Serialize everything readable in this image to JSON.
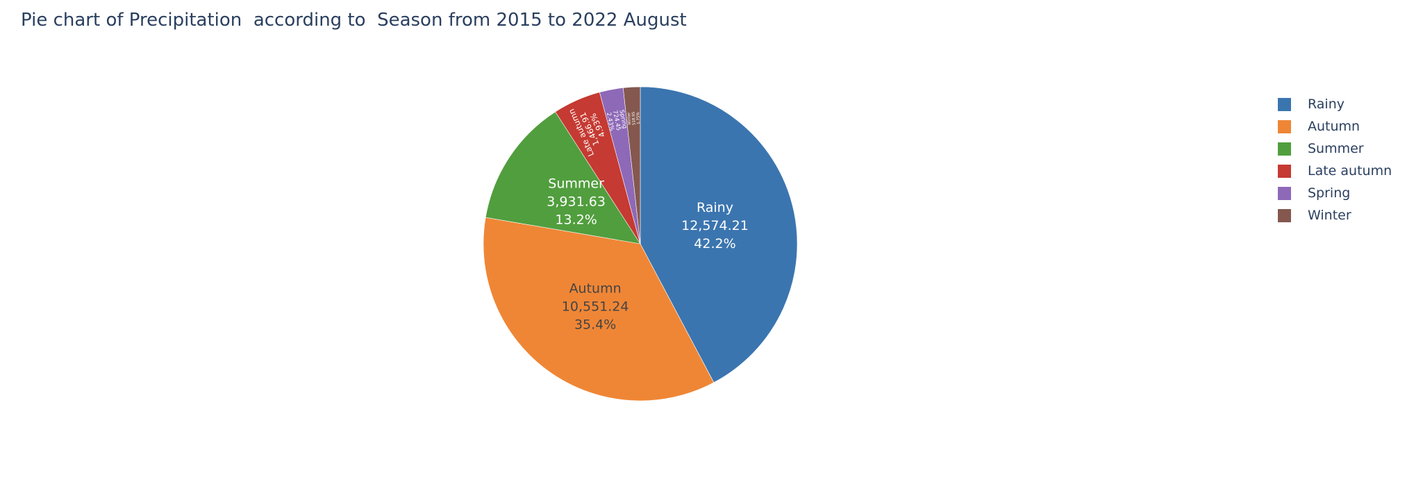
{
  "chart_data": {
    "type": "pie",
    "title": "Pie chart of Precipitation  according to  Season from 2015 to 2022 August",
    "slices": [
      {
        "name": "Rainy",
        "value": 12574.21,
        "value_label": "12,574.21",
        "percent_label": "42.2%",
        "color": "#3b75af"
      },
      {
        "name": "Autumn",
        "value": 10551.24,
        "value_label": "10,551.24",
        "percent_label": "35.4%",
        "color": "#ef8636"
      },
      {
        "name": "Summer",
        "value": 3931.63,
        "value_label": "3,931.63",
        "percent_label": "13.2%",
        "color": "#519e3e"
      },
      {
        "name": "Late autumn",
        "value": 1466.91,
        "value_label": "1,466.91",
        "percent_label": "4.93%",
        "color": "#c53a32"
      },
      {
        "name": "Spring",
        "value": 724.45,
        "value_label": "724.45",
        "percent_label": "2.43%",
        "color": "#8d69b8"
      },
      {
        "name": "Winter",
        "value": 518.95,
        "value_label": "518.95",
        "percent_label": "1.75%",
        "color": "#84584e"
      }
    ],
    "direction": "clockwise",
    "start_angle": "top",
    "legend_position": "top-right"
  }
}
